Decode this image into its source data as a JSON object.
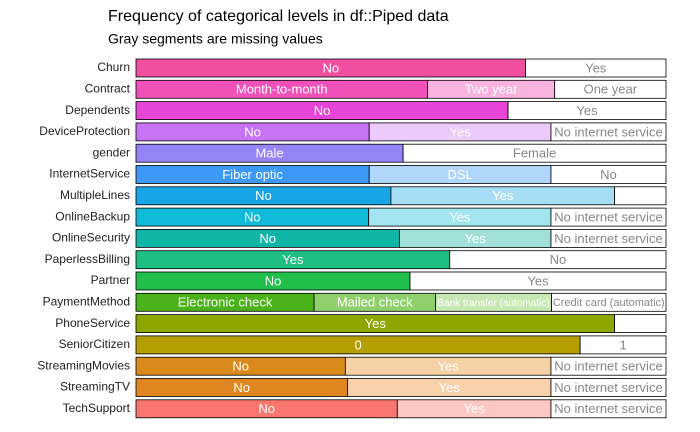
{
  "chart_data": {
    "type": "stacked-bar-horizontal",
    "title": "Frequency of categorical levels in df::Piped data",
    "subtitle": "Gray segments are missing values",
    "xlim": [
      0,
      100
    ],
    "categories": [
      "Churn",
      "Contract",
      "Dependents",
      "DeviceProtection",
      "gender",
      "InternetService",
      "MultipleLines",
      "OnlineBackup",
      "OnlineSecurity",
      "PaperlessBilling",
      "Partner",
      "PaymentMethod",
      "PhoneService",
      "SeniorCitizen",
      "StreamingMovies",
      "StreamingTV",
      "TechSupport"
    ],
    "rows": [
      {
        "labels": [
          "No",
          "Yes"
        ],
        "values": [
          73.5,
          26.5
        ],
        "colors": [
          "#f04fa0",
          "#ffffff"
        ]
      },
      {
        "labels": [
          "Month-to-month",
          "Two year",
          "One year"
        ],
        "values": [
          55,
          24,
          21
        ],
        "colors": [
          "#f050b8",
          "#f9b3df",
          "#ffffff"
        ]
      },
      {
        "labels": [
          "No",
          "Yes"
        ],
        "values": [
          70.2,
          29.8
        ],
        "colors": [
          "#e645d8",
          "#ffffff"
        ]
      },
      {
        "labels": [
          "No",
          "Yes",
          "No internet service"
        ],
        "values": [
          44,
          34.3,
          21.7
        ],
        "colors": [
          "#c774f4",
          "#eccafc",
          "#ffffff"
        ]
      },
      {
        "labels": [
          "Male",
          "Female"
        ],
        "values": [
          50.4,
          49.6
        ],
        "colors": [
          "#9484f5",
          "#ffffff"
        ]
      },
      {
        "labels": [
          "Fiber optic",
          "DSL",
          "No"
        ],
        "values": [
          44,
          34.3,
          21.7
        ],
        "colors": [
          "#3d98f7",
          "#b1d6fb",
          "#ffffff"
        ]
      },
      {
        "labels": [
          "No",
          "Yes",
          null
        ],
        "values": [
          48.1,
          42.2,
          9.7
        ],
        "colors": [
          "#17a5e8",
          "#a7def6",
          "#ffffff"
        ]
      },
      {
        "labels": [
          "No",
          "Yes",
          "No internet service"
        ],
        "values": [
          43.9,
          34.4,
          21.7
        ],
        "colors": [
          "#0fbbd8",
          "#a3e5ef",
          "#ffffff"
        ]
      },
      {
        "labels": [
          "No",
          "Yes",
          "No internet service"
        ],
        "values": [
          49.7,
          28.6,
          21.7
        ],
        "colors": [
          "#11b5a5",
          "#a0e0d9",
          "#ffffff"
        ]
      },
      {
        "labels": [
          "Yes",
          "No"
        ],
        "values": [
          59.2,
          40.8
        ],
        "colors": [
          "#1ebf82",
          "#ffffff"
        ]
      },
      {
        "labels": [
          "No",
          "Yes"
        ],
        "values": [
          51.7,
          48.3
        ],
        "colors": [
          "#20bf4c",
          "#ffffff"
        ]
      },
      {
        "labels": [
          "Electronic check",
          "Mailed check",
          "Bank transfer (automatic)",
          "Credit card (automatic)"
        ],
        "values": [
          33.6,
          22.9,
          21.9,
          21.6
        ],
        "colors": [
          "#4bb21b",
          "#8fd06c",
          "#c6e9b3",
          "#ffffff"
        ]
      },
      {
        "labels": [
          "Yes",
          null
        ],
        "values": [
          90.3,
          9.7
        ],
        "colors": [
          "#8ea700",
          "#ffffff"
        ]
      },
      {
        "labels": [
          "0",
          "1"
        ],
        "values": [
          83.8,
          16.2
        ],
        "colors": [
          "#b59f00",
          "#ffffff"
        ]
      },
      {
        "labels": [
          "No",
          "Yes",
          "No internet service"
        ],
        "values": [
          39.5,
          38.8,
          21.7
        ],
        "colors": [
          "#da8a1a",
          "#f4d2a6",
          "#ffffff"
        ]
      },
      {
        "labels": [
          "No",
          "Yes",
          "No internet service"
        ],
        "values": [
          39.9,
          38.4,
          21.7
        ],
        "colors": [
          "#e08620",
          "#f6d1aa",
          "#ffffff"
        ]
      },
      {
        "labels": [
          "No",
          "Yes",
          "No internet service"
        ],
        "values": [
          49.3,
          29,
          21.7
        ],
        "colors": [
          "#f8766d",
          "#fcc8c4",
          "#ffffff"
        ]
      }
    ]
  }
}
